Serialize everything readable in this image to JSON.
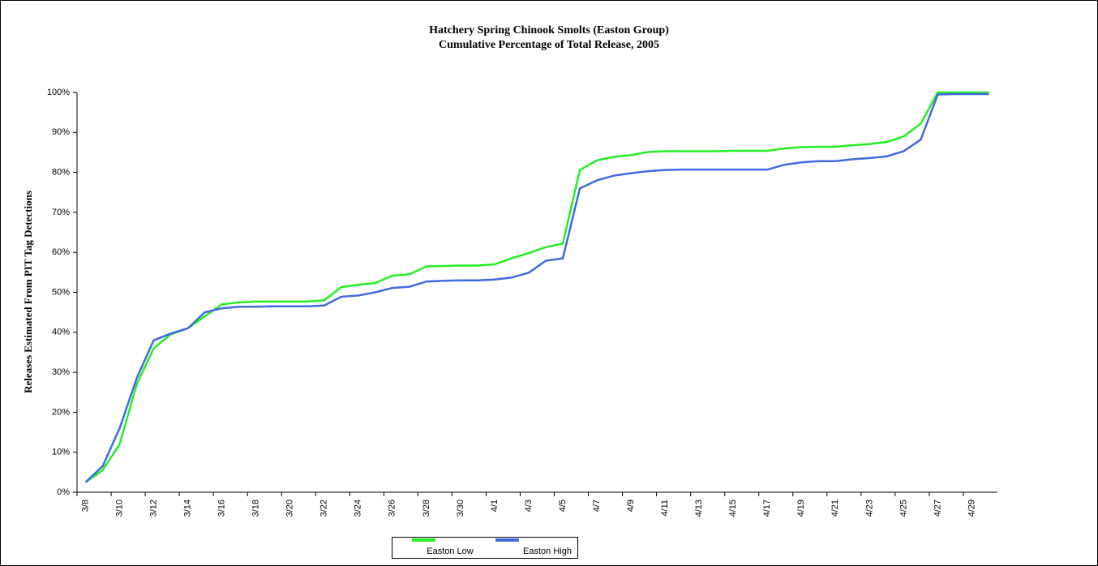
{
  "chart_data": {
    "type": "line",
    "title": "Hatchery Spring Chinook Smolts (Easton Group)",
    "subtitle": "Cumulative Percentage of Total Release, 2005",
    "y_label": "Releases Estimated From PIT Tag Detections",
    "categories": [
      "3/8",
      null,
      "3/10",
      null,
      "3/12",
      null,
      "3/14",
      null,
      "3/16",
      null,
      "3/18",
      null,
      "3/20",
      null,
      "3/22",
      null,
      "3/24",
      null,
      "3/26",
      null,
      "3/28",
      null,
      "3/30",
      null,
      "4/1",
      null,
      "4/3",
      null,
      "4/5",
      null,
      "4/7",
      null,
      "4/9",
      null,
      "4/11",
      null,
      "4/13",
      null,
      "4/15",
      null,
      "4/17",
      null,
      "4/19",
      null,
      "4/21",
      null,
      "4/23",
      null,
      "4/25",
      null,
      "4/27",
      null,
      "4/29",
      null
    ],
    "series": [
      {
        "name": "Easton Low",
        "color": "#22ee22",
        "values": [
          2.5,
          5.5,
          12,
          27,
          36,
          39.5,
          41,
          44,
          47,
          47.5,
          47.7,
          47.7,
          47.7,
          47.7,
          48,
          51.3,
          51.9,
          52.3,
          54.2,
          54.5,
          56.5,
          56.6,
          56.7,
          56.7,
          57,
          58.5,
          59.8,
          61.3,
          62.2,
          80.6,
          83,
          83.9,
          84.3,
          85.1,
          85.3,
          85.3,
          85.3,
          85.3,
          85.4,
          85.4,
          85.4,
          86,
          86.3,
          86.4,
          86.4,
          86.8,
          87.1,
          87.6,
          89,
          92.2,
          100,
          100,
          100,
          100
        ]
      },
      {
        "name": "Easton High",
        "color": "#4169e1",
        "values": [
          2.5,
          6.5,
          16,
          28.5,
          38,
          39.7,
          41,
          45,
          46,
          46.4,
          46.4,
          46.5,
          46.5,
          46.5,
          46.7,
          48.9,
          49.2,
          50,
          51.1,
          51.4,
          52.7,
          52.9,
          53,
          53,
          53.2,
          53.7,
          54.9,
          57.9,
          58.5,
          76,
          78,
          79.2,
          79.8,
          80.3,
          80.6,
          80.7,
          80.7,
          80.7,
          80.7,
          80.7,
          80.7,
          81.9,
          82.5,
          82.8,
          82.8,
          83.3,
          83.6,
          84,
          85.3,
          88.2,
          99.5,
          99.6,
          99.6,
          99.6
        ]
      }
    ],
    "ylim": [
      0,
      100
    ],
    "yticks": [
      {
        "value": 0,
        "label": "0%"
      },
      {
        "value": 10,
        "label": "10%"
      },
      {
        "value": 20,
        "label": "20%"
      },
      {
        "value": 30,
        "label": "30%"
      },
      {
        "value": 40,
        "label": "40%"
      },
      {
        "value": 50,
        "label": "50%"
      },
      {
        "value": 60,
        "label": "60%"
      },
      {
        "value": 70,
        "label": "70%"
      },
      {
        "value": 80,
        "label": "80%"
      },
      {
        "value": 90,
        "label": "90%"
      },
      {
        "value": 100,
        "label": "100%"
      }
    ],
    "grid": false,
    "legend": "bottom"
  }
}
